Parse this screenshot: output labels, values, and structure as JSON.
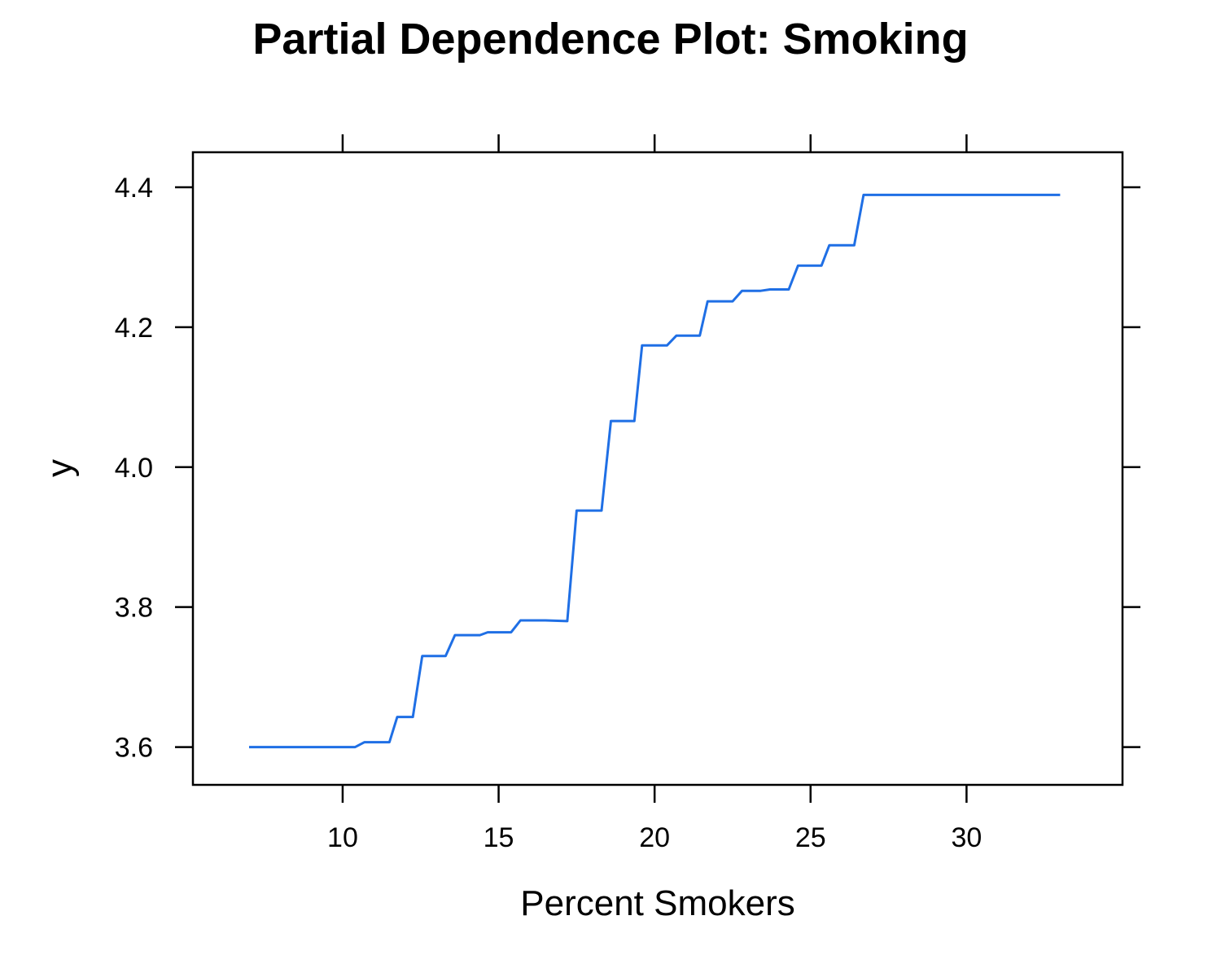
{
  "chart_data": {
    "type": "line",
    "title": "Partial Dependence Plot: Smoking",
    "xlabel": "Percent Smokers",
    "ylabel": "y",
    "xlim": [
      5.2,
      35.0
    ],
    "ylim": [
      3.546,
      4.45
    ],
    "x_ticks": [
      10,
      15,
      20,
      25,
      30
    ],
    "x_tick_labels": [
      "10",
      "15",
      "20",
      "25",
      "30"
    ],
    "y_ticks": [
      3.6,
      3.8,
      4.0,
      4.2,
      4.4
    ],
    "y_tick_labels": [
      "3.6",
      "3.8",
      "4.0",
      "4.2",
      "4.4"
    ],
    "grid": false,
    "line_color": "#1f6fe5",
    "series": [
      {
        "x": [
          7.0,
          10.4,
          10.7,
          11.5,
          11.75,
          12.25,
          12.55,
          13.3,
          13.6,
          14.4,
          14.65,
          15.4,
          15.7,
          16.5,
          17.2,
          17.5,
          18.3,
          18.6,
          19.35,
          19.6,
          20.4,
          20.7,
          21.45,
          21.7,
          22.5,
          22.8,
          23.4,
          23.7,
          24.3,
          24.6,
          25.35,
          25.6,
          26.4,
          26.7,
          33.0
        ],
        "y": [
          3.6,
          3.6,
          3.607,
          3.607,
          3.643,
          3.643,
          3.73,
          3.73,
          3.76,
          3.76,
          3.764,
          3.764,
          3.781,
          3.781,
          3.78,
          3.938,
          3.938,
          4.066,
          4.066,
          4.174,
          4.174,
          4.188,
          4.188,
          4.237,
          4.237,
          4.252,
          4.252,
          4.254,
          4.254,
          4.288,
          4.288,
          4.317,
          4.317,
          4.389,
          4.389
        ]
      }
    ]
  }
}
